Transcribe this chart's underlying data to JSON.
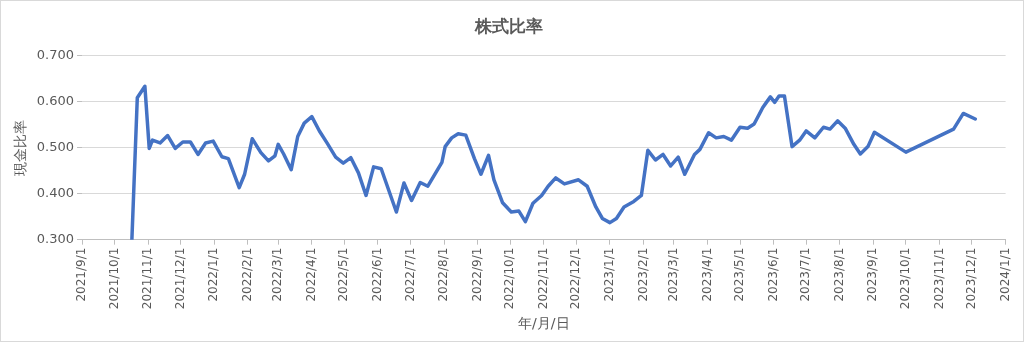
{
  "chart_data": {
    "type": "line",
    "title": "株式比率",
    "xlabel": "年/月/日",
    "ylabel": "現金比率",
    "x": [
      "2021-10-17",
      "2021-10-22",
      "2021-10-29",
      "2021-11-02",
      "2021-11-05",
      "2021-11-12",
      "2021-11-19",
      "2021-11-26",
      "2021-12-03",
      "2021-12-10",
      "2021-12-17",
      "2021-12-24",
      "2021-12-31",
      "2022-01-08",
      "2022-01-14",
      "2022-01-24",
      "2022-01-29",
      "2022-02-05",
      "2022-02-13",
      "2022-02-20",
      "2022-02-26",
      "2022-03-01",
      "2022-03-06",
      "2022-03-13",
      "2022-03-19",
      "2022-03-25",
      "2022-04-01",
      "2022-04-08",
      "2022-04-15",
      "2022-04-23",
      "2022-04-30",
      "2022-05-07",
      "2022-05-14",
      "2022-05-21",
      "2022-05-28",
      "2022-06-04",
      "2022-06-18",
      "2022-06-25",
      "2022-07-02",
      "2022-07-10",
      "2022-07-17",
      "2022-07-30",
      "2022-08-02",
      "2022-08-08",
      "2022-08-14",
      "2022-08-21",
      "2022-08-29",
      "2022-09-04",
      "2022-09-11",
      "2022-09-16",
      "2022-09-24",
      "2022-10-02",
      "2022-10-09",
      "2022-10-15",
      "2022-10-22",
      "2022-10-30",
      "2022-11-05",
      "2022-11-12",
      "2022-11-20",
      "2022-12-03",
      "2022-12-11",
      "2022-12-19",
      "2022-12-25",
      "2023-01-01",
      "2023-01-07",
      "2023-01-14",
      "2023-01-23",
      "2023-01-30",
      "2023-02-05",
      "2023-02-12",
      "2023-02-19",
      "2023-02-26",
      "2023-03-05",
      "2023-03-11",
      "2023-03-20",
      "2023-03-25",
      "2023-04-02",
      "2023-04-09",
      "2023-04-16",
      "2023-04-23",
      "2023-05-01",
      "2023-05-08",
      "2023-05-14",
      "2023-05-22",
      "2023-05-29",
      "2023-06-02",
      "2023-06-06",
      "2023-06-11",
      "2023-06-18",
      "2023-06-25",
      "2023-07-01",
      "2023-07-09",
      "2023-07-17",
      "2023-07-23",
      "2023-07-30",
      "2023-08-06",
      "2023-08-14",
      "2023-08-20",
      "2023-08-27",
      "2023-09-02",
      "2023-10-01",
      "2023-11-14",
      "2023-11-23",
      "2023-12-04"
    ],
    "series": [
      {
        "color": "#4472c4",
        "values": [
          0.3,
          0.608,
          0.633,
          0.498,
          0.516,
          0.51,
          0.526,
          0.498,
          0.512,
          0.512,
          0.485,
          0.51,
          0.514,
          0.48,
          0.476,
          0.413,
          0.442,
          0.519,
          0.489,
          0.471,
          0.482,
          0.507,
          0.486,
          0.452,
          0.524,
          0.553,
          0.567,
          0.536,
          0.51,
          0.479,
          0.466,
          0.478,
          0.445,
          0.396,
          0.458,
          0.454,
          0.36,
          0.423,
          0.385,
          0.424,
          0.416,
          0.468,
          0.502,
          0.521,
          0.53,
          0.527,
          0.476,
          0.442,
          0.483,
          0.43,
          0.38,
          0.36,
          0.362,
          0.339,
          0.379,
          0.396,
          0.416,
          0.434,
          0.421,
          0.43,
          0.416,
          0.371,
          0.346,
          0.337,
          0.346,
          0.371,
          0.383,
          0.396,
          0.494,
          0.473,
          0.485,
          0.46,
          0.479,
          0.442,
          0.485,
          0.496,
          0.532,
          0.521,
          0.524,
          0.516,
          0.544,
          0.542,
          0.551,
          0.587,
          0.61,
          0.598,
          0.612,
          0.612,
          0.502,
          0.516,
          0.536,
          0.521,
          0.544,
          0.54,
          0.558,
          0.542,
          0.507,
          0.486,
          0.502,
          0.533,
          0.49,
          0.54,
          0.574,
          0.562
        ]
      }
    ],
    "xlim": [
      "2021-09-01",
      "2024-01-01"
    ],
    "xticks": [
      {
        "value": "2021-09-01",
        "label": "2021/9/1"
      },
      {
        "value": "2021-10-01",
        "label": "2021/10/1"
      },
      {
        "value": "2021-11-01",
        "label": "2021/11/1"
      },
      {
        "value": "2021-12-01",
        "label": "2021/12/1"
      },
      {
        "value": "2022-01-01",
        "label": "2022/1/1"
      },
      {
        "value": "2022-02-01",
        "label": "2022/2/1"
      },
      {
        "value": "2022-03-01",
        "label": "2022/3/1"
      },
      {
        "value": "2022-04-01",
        "label": "2022/4/1"
      },
      {
        "value": "2022-05-01",
        "label": "2022/5/1"
      },
      {
        "value": "2022-06-01",
        "label": "2022/6/1"
      },
      {
        "value": "2022-07-01",
        "label": "2022/7/1"
      },
      {
        "value": "2022-08-01",
        "label": "2022/8/1"
      },
      {
        "value": "2022-09-01",
        "label": "2022/9/1"
      },
      {
        "value": "2022-10-01",
        "label": "2022/10/1"
      },
      {
        "value": "2022-11-01",
        "label": "2022/11/1"
      },
      {
        "value": "2022-12-01",
        "label": "2022/12/1"
      },
      {
        "value": "2023-01-01",
        "label": "2023/1/1"
      },
      {
        "value": "2023-02-01",
        "label": "2023/2/1"
      },
      {
        "value": "2023-03-01",
        "label": "2023/3/1"
      },
      {
        "value": "2023-04-01",
        "label": "2023/4/1"
      },
      {
        "value": "2023-05-01",
        "label": "2023/5/1"
      },
      {
        "value": "2023-06-01",
        "label": "2023/6/1"
      },
      {
        "value": "2023-07-01",
        "label": "2023/7/1"
      },
      {
        "value": "2023-08-01",
        "label": "2023/8/1"
      },
      {
        "value": "2023-09-01",
        "label": "2023/9/1"
      },
      {
        "value": "2023-10-01",
        "label": "2023/10/1"
      },
      {
        "value": "2023-11-01",
        "label": "2023/11/1"
      },
      {
        "value": "2023-12-01",
        "label": "2023/12/1"
      },
      {
        "value": "2024-01-01",
        "label": "2024/1/1"
      }
    ],
    "ylim": [
      0.3,
      0.7
    ],
    "yticks": [
      {
        "value": 0.3,
        "label": "0.300"
      },
      {
        "value": 0.4,
        "label": "0.400"
      },
      {
        "value": 0.5,
        "label": "0.500"
      },
      {
        "value": 0.6,
        "label": "0.600"
      },
      {
        "value": 0.7,
        "label": "0.700"
      }
    ],
    "grid": "y",
    "marker": "none",
    "line_style": "solid"
  }
}
